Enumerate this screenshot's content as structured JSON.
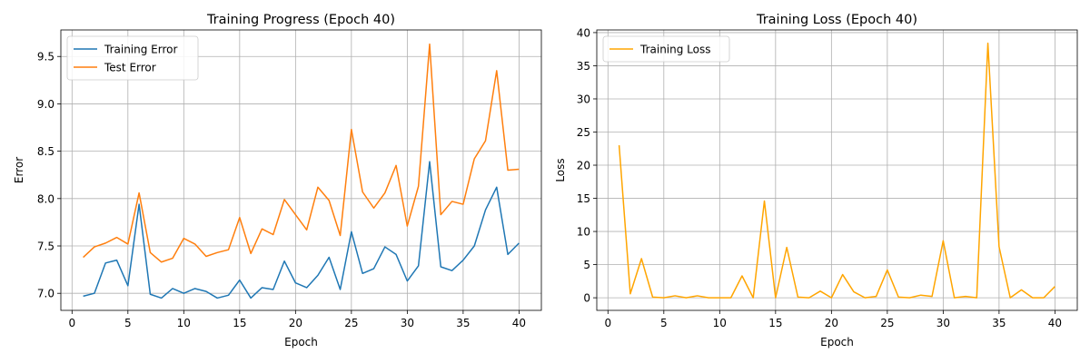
{
  "chart_data": [
    {
      "type": "line",
      "title": "Training Progress (Epoch 40)",
      "xlabel": "Epoch",
      "ylabel": "Error",
      "xlim": [
        -1,
        42
      ],
      "ylim": [
        6.82,
        9.78
      ],
      "xticks": [
        0,
        5,
        10,
        15,
        20,
        25,
        30,
        35,
        40
      ],
      "yticks": [
        7.0,
        7.5,
        8.0,
        8.5,
        9.0,
        9.5
      ],
      "ytick_labels": [
        "7.0",
        "7.5",
        "8.0",
        "8.5",
        "9.0",
        "9.5"
      ],
      "grid": true,
      "legend_position": "upper-left",
      "x": [
        1,
        2,
        3,
        4,
        5,
        6,
        7,
        8,
        9,
        10,
        11,
        12,
        13,
        14,
        15,
        16,
        17,
        18,
        19,
        20,
        21,
        22,
        23,
        24,
        25,
        26,
        27,
        28,
        29,
        30,
        31,
        32,
        33,
        34,
        35,
        36,
        37,
        38,
        39,
        40
      ],
      "series": [
        {
          "name": "Training Error",
          "color": "#1f77b4",
          "values": [
            6.97,
            7.0,
            7.32,
            7.35,
            7.08,
            7.94,
            6.99,
            6.95,
            7.05,
            7.0,
            7.05,
            7.02,
            6.95,
            6.98,
            7.14,
            6.95,
            7.06,
            7.04,
            7.34,
            7.11,
            7.06,
            7.19,
            7.38,
            7.04,
            7.65,
            7.21,
            7.26,
            7.49,
            7.41,
            7.13,
            7.29,
            8.39,
            7.28,
            7.24,
            7.35,
            7.5,
            7.88,
            8.12,
            7.41,
            7.53
          ]
        },
        {
          "name": "Test Error",
          "color": "#ff7f0e",
          "values": [
            7.38,
            7.49,
            7.53,
            7.59,
            7.52,
            8.06,
            7.43,
            7.33,
            7.37,
            7.58,
            7.52,
            7.39,
            7.43,
            7.46,
            7.8,
            7.42,
            7.68,
            7.62,
            7.99,
            7.83,
            7.67,
            8.12,
            7.98,
            7.61,
            8.73,
            8.07,
            7.9,
            8.06,
            8.35,
            7.71,
            8.13,
            9.63,
            7.83,
            7.97,
            7.94,
            8.42,
            8.61,
            9.35,
            8.3,
            8.31
          ]
        }
      ]
    },
    {
      "type": "line",
      "title": "Training Loss (Epoch 40)",
      "xlabel": "Epoch",
      "ylabel": "Loss",
      "xlim": [
        -1,
        42
      ],
      "ylim": [
        -1.9,
        40.4
      ],
      "xticks": [
        0,
        5,
        10,
        15,
        20,
        25,
        30,
        35,
        40
      ],
      "yticks": [
        0,
        5,
        10,
        15,
        20,
        25,
        30,
        35,
        40
      ],
      "ytick_labels": [
        "0",
        "5",
        "10",
        "15",
        "20",
        "25",
        "30",
        "35",
        "40"
      ],
      "grid": true,
      "legend_position": "upper-left",
      "x": [
        1,
        2,
        3,
        4,
        5,
        6,
        7,
        8,
        9,
        10,
        11,
        12,
        13,
        14,
        15,
        16,
        17,
        18,
        19,
        20,
        21,
        22,
        23,
        24,
        25,
        26,
        27,
        28,
        29,
        30,
        31,
        32,
        33,
        34,
        35,
        36,
        37,
        38,
        39,
        40
      ],
      "series": [
        {
          "name": "Training Loss",
          "color": "#ffa500",
          "values": [
            23.0,
            0.6,
            5.9,
            0.1,
            0.0,
            0.3,
            0.0,
            0.3,
            0.0,
            0.0,
            0.0,
            3.3,
            0.0,
            14.6,
            0.0,
            7.6,
            0.1,
            0.0,
            1.0,
            0.0,
            3.5,
            0.9,
            0.0,
            0.2,
            4.2,
            0.1,
            0.0,
            0.4,
            0.2,
            8.6,
            0.0,
            0.2,
            0.0,
            38.4,
            7.7,
            0.0,
            1.2,
            0.0,
            0.0,
            1.7
          ]
        }
      ]
    }
  ]
}
